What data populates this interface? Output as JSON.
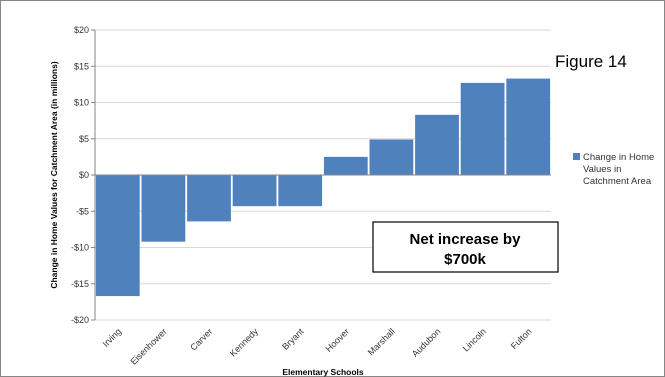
{
  "figure_label": "Figure 14",
  "chart_data": {
    "type": "bar",
    "title": "",
    "xlabel": "Elementary Schools",
    "ylabel": "Change in Home Values for Catchment Area (in millions)",
    "categories": [
      "Irving",
      "Eisenhower",
      "Carver",
      "Kennedy",
      "Bryant",
      "Hoover",
      "Marshall",
      "Audubon",
      "Lincoln",
      "Fulton"
    ],
    "series": [
      {
        "name": "Change in Home Values in Catchment Area",
        "values": [
          -16.7,
          -9.2,
          -6.4,
          -4.3,
          -4.3,
          2.5,
          4.9,
          8.3,
          12.7,
          13.3
        ],
        "color": "#4F81BD"
      }
    ],
    "ylim": [
      -20,
      20
    ],
    "yticks": [
      20,
      15,
      10,
      5,
      0,
      -5,
      -10,
      -15,
      -20
    ],
    "ytick_labels": [
      "$20",
      "$15",
      "$10",
      "$5",
      "$0",
      "-$5",
      "-$10",
      "-$15",
      "-$20"
    ],
    "grid": true,
    "legend_position": "right",
    "legend_lines": [
      "Change in Home",
      "Values in",
      "Catchment Area"
    ],
    "annotation": {
      "lines": [
        "Net increase by",
        "$700k"
      ]
    },
    "colors": {
      "bar": "#4F81BD",
      "grid": "#d9d9d9",
      "axis": "#868686"
    }
  }
}
